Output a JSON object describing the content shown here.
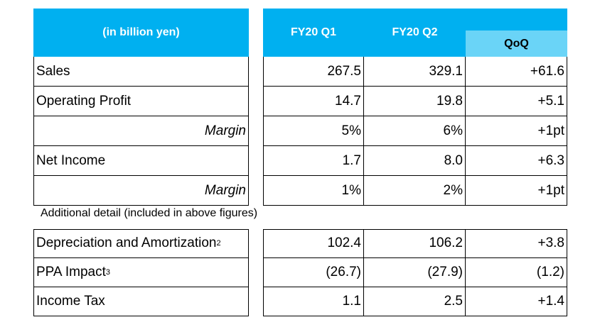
{
  "header": {
    "unit": "(in billion yen)",
    "col_q1": "FY20 Q1",
    "col_q2": "FY20 Q2",
    "col_qoq": "QoQ"
  },
  "rows": [
    {
      "label": "Sales",
      "q1": "267.5",
      "q2": "329.1",
      "qoq": "+61.6",
      "italic": false
    },
    {
      "label": "Operating Profit",
      "q1": "14.7",
      "q2": "19.8",
      "qoq": "+5.1",
      "italic": false
    },
    {
      "label": "Margin",
      "q1": "5%",
      "q2": "6%",
      "qoq": "+1pt",
      "italic": true
    },
    {
      "label": "Net Income",
      "q1": "1.7",
      "q2": "8.0",
      "qoq": "+6.3",
      "italic": false
    },
    {
      "label": "Margin",
      "q1": "1%",
      "q2": "2%",
      "qoq": "+1pt",
      "italic": true
    }
  ],
  "note": "Additional detail (included in above figures)",
  "detail_rows": [
    {
      "label": "Depreciation and Amortization",
      "sup": "2",
      "q1": "102.4",
      "q2": "106.2",
      "qoq": "+3.8"
    },
    {
      "label": "PPA Impact",
      "sup": "3",
      "q1": "(26.7)",
      "q2": "(27.9)",
      "qoq": "(1.2)"
    },
    {
      "label": "Income Tax",
      "sup": "",
      "q1": "1.1",
      "q2": "2.5",
      "qoq": "+1.4"
    }
  ],
  "colors": {
    "header_bg": "#00b0f0",
    "qoq_bg": "#6ad4f7"
  }
}
